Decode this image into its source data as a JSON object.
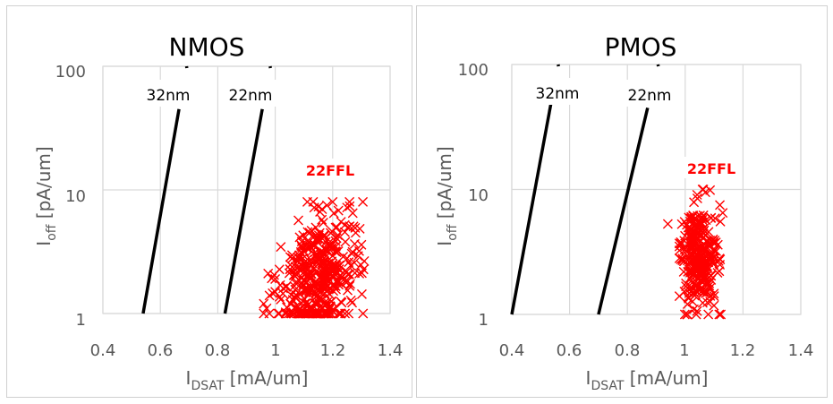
{
  "chart_data": [
    {
      "type": "scatter",
      "title": "NMOS",
      "xlabel": "I",
      "xlabel_sub": "DSAT",
      "xlabel_unit": " [mA/um]",
      "ylabel": "I",
      "ylabel_sub": "off",
      "ylabel_unit": " [pA/um]",
      "xlim": [
        0.4,
        1.4
      ],
      "ylim": [
        1,
        100
      ],
      "yscale": "log",
      "grid": true,
      "x_ticks": [
        "0.4",
        "0.6",
        "0.8",
        "1",
        "1.2",
        "1.4"
      ],
      "x_tick_values": [
        0.4,
        0.6,
        0.8,
        1.0,
        1.2,
        1.4
      ],
      "y_ticks": [
        "1",
        "10",
        "100"
      ],
      "y_tick_values": [
        1,
        10,
        100
      ],
      "lines": [
        {
          "name": "32nm",
          "color": "#000000",
          "x": [
            0.54,
            0.665
          ],
          "y": [
            1,
            45
          ]
        },
        {
          "name": "22nm",
          "color": "#000000",
          "x": [
            0.825,
            0.955
          ],
          "y": [
            1,
            45
          ]
        }
      ],
      "scatter": {
        "name": "22FFL",
        "color": "#ff0000",
        "marker": "x",
        "cluster": {
          "x_center": 1.15,
          "x_spread": 0.06,
          "log_y_center": 0.3,
          "log_y_spread": 0.25,
          "slope": 3.2,
          "count": 420,
          "x_range": [
            0.96,
            1.31
          ],
          "y_range": [
            1.0,
            8.0
          ]
        },
        "outliers": [
          [
            0.96,
            1.2
          ],
          [
            0.97,
            1.1
          ],
          [
            0.98,
            1.4
          ],
          [
            1.0,
            1.9
          ],
          [
            1.0,
            1.5
          ],
          [
            1.06,
            2.8
          ],
          [
            1.25,
            7.2
          ],
          [
            1.2,
            8.0
          ],
          [
            1.3,
            3.6
          ],
          [
            1.27,
            6.5
          ],
          [
            1.18,
            7.5
          ],
          [
            1.22,
            6.8
          ],
          [
            1.28,
            4.5
          ]
        ]
      }
    },
    {
      "type": "scatter",
      "title": "PMOS",
      "xlabel": "I",
      "xlabel_sub": "DSAT",
      "xlabel_unit": " [mA/um]",
      "ylabel": "I",
      "ylabel_sub": "off",
      "ylabel_unit": " [pA/um]",
      "xlim": [
        0.4,
        1.4
      ],
      "ylim": [
        1,
        100
      ],
      "yscale": "log",
      "grid": true,
      "x_ticks": [
        "0.4",
        "0.6",
        "0.8",
        "1",
        "1.2",
        "1.4"
      ],
      "x_tick_values": [
        0.4,
        0.6,
        0.8,
        1.0,
        1.2,
        1.4
      ],
      "y_ticks": [
        "1",
        "10",
        "100"
      ],
      "y_tick_values": [
        1,
        10,
        100
      ],
      "lines": [
        {
          "name": "32nm",
          "color": "#000000",
          "x": [
            0.4,
            0.535
          ],
          "y": [
            1,
            48
          ]
        },
        {
          "name": "22nm",
          "color": "#000000",
          "x": [
            0.7,
            0.87
          ],
          "y": [
            1,
            45
          ]
        }
      ],
      "scatter": {
        "name": "22FFL",
        "color": "#ff0000",
        "marker": "x",
        "cluster": {
          "x_center": 1.05,
          "x_spread": 0.03,
          "log_y_center": 0.45,
          "log_y_spread": 0.2,
          "slope": 0.0,
          "count": 300,
          "x_range": [
            0.98,
            1.13
          ],
          "y_range": [
            1.0,
            10.0
          ]
        },
        "outliers": [
          [
            0.94,
            5.3
          ],
          [
            1.06,
            10.0
          ],
          [
            1.07,
            9.5
          ],
          [
            1.12,
            7.5
          ],
          [
            1.13,
            6.5
          ],
          [
            0.98,
            1.4
          ],
          [
            1.08,
            1.0
          ],
          [
            1.03,
            1.1
          ],
          [
            1.12,
            2.5
          ],
          [
            1.1,
            1.4
          ],
          [
            0.98,
            3.5
          ]
        ]
      }
    }
  ]
}
